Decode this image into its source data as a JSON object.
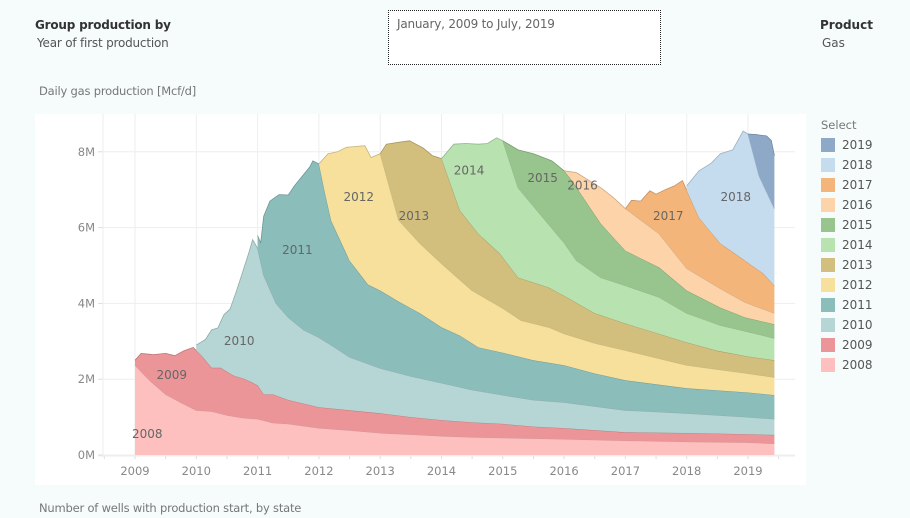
{
  "filters": {
    "group_by_title": "Group production by",
    "group_by_value": "Year of first production",
    "date_range": "January, 2009 to July, 2019",
    "product_title": "Product",
    "product_value": "Gas"
  },
  "chart_title": "Daily gas production [Mcf/d]",
  "bottom_section_title": "Number of wells with production start, by state",
  "legend": {
    "title": "Select",
    "items": [
      {
        "label": "2019",
        "color": "#8ea9c8"
      },
      {
        "label": "2018",
        "color": "#c4dcee"
      },
      {
        "label": "2017",
        "color": "#f4b57a"
      },
      {
        "label": "2016",
        "color": "#fdd3aa"
      },
      {
        "label": "2015",
        "color": "#98c48d"
      },
      {
        "label": "2014",
        "color": "#b8e2b0"
      },
      {
        "label": "2013",
        "color": "#d2bf7d"
      },
      {
        "label": "2012",
        "color": "#f6e09c"
      },
      {
        "label": "2011",
        "color": "#8bbdba"
      },
      {
        "label": "2010",
        "color": "#b5d6d4"
      },
      {
        "label": "2009",
        "color": "#eb9598"
      },
      {
        "label": "2008",
        "color": "#fec0bf"
      }
    ]
  },
  "chart_data": {
    "type": "area",
    "stacked": true,
    "title": "Daily gas production [Mcf/d]",
    "xlabel": "",
    "ylabel": "Daily gas production [Mcf/d]",
    "xlim": [
      2008.5,
      2019.9
    ],
    "ylim": [
      0,
      8800000
    ],
    "x_ticks": [
      "2009",
      "2010",
      "2011",
      "2012",
      "2013",
      "2014",
      "2015",
      "2016",
      "2017",
      "2018",
      "2019"
    ],
    "y_ticks": [
      "0M",
      "2M",
      "4M",
      "6M",
      "8M"
    ],
    "y_tick_values": [
      0,
      2,
      4,
      6,
      8
    ],
    "units": "M (million Mcf/d)",
    "grid": true,
    "legend_position": "right",
    "series_note": "Each series gives the cumulative stacked top (in millions) at [year, value] points; the layer bottom is the previous cohort's top.",
    "series": [
      {
        "name": "2008",
        "label_at": [
          2009.2,
          0.45
        ],
        "start": 2009.0,
        "top": [
          [
            2009.0,
            2.37
          ],
          [
            2009.25,
            1.95
          ],
          [
            2009.5,
            1.6
          ],
          [
            2009.75,
            1.38
          ],
          [
            2010.0,
            1.18
          ],
          [
            2010.25,
            1.15
          ],
          [
            2010.5,
            1.05
          ],
          [
            2010.75,
            0.98
          ],
          [
            2011.0,
            0.95
          ],
          [
            2011.25,
            0.85
          ],
          [
            2011.5,
            0.82
          ],
          [
            2012.0,
            0.71
          ],
          [
            2012.5,
            0.65
          ],
          [
            2013.0,
            0.58
          ],
          [
            2013.5,
            0.54
          ],
          [
            2014.0,
            0.5
          ],
          [
            2014.5,
            0.47
          ],
          [
            2015.0,
            0.45
          ],
          [
            2016.0,
            0.42
          ],
          [
            2017.0,
            0.38
          ],
          [
            2018.0,
            0.35
          ],
          [
            2019.0,
            0.33
          ],
          [
            2019.43,
            0.3
          ]
        ]
      },
      {
        "name": "2009",
        "label_at": [
          2009.6,
          2.0
        ],
        "start": 2009.0,
        "top": [
          [
            2009.0,
            2.5
          ],
          [
            2009.1,
            2.68
          ],
          [
            2009.3,
            2.65
          ],
          [
            2009.5,
            2.68
          ],
          [
            2009.65,
            2.62
          ],
          [
            2009.8,
            2.75
          ],
          [
            2009.95,
            2.84
          ],
          [
            2010.1,
            2.6
          ],
          [
            2010.25,
            2.3
          ],
          [
            2010.4,
            2.3
          ],
          [
            2010.6,
            2.1
          ],
          [
            2010.8,
            2.0
          ],
          [
            2011.0,
            1.84
          ],
          [
            2011.1,
            1.6
          ],
          [
            2011.25,
            1.6
          ],
          [
            2011.5,
            1.45
          ],
          [
            2012.0,
            1.26
          ],
          [
            2012.5,
            1.18
          ],
          [
            2013.0,
            1.1
          ],
          [
            2013.5,
            1.0
          ],
          [
            2014.0,
            0.92
          ],
          [
            2014.5,
            0.86
          ],
          [
            2015.0,
            0.82
          ],
          [
            2015.5,
            0.75
          ],
          [
            2016.0,
            0.71
          ],
          [
            2017.0,
            0.6
          ],
          [
            2018.0,
            0.58
          ],
          [
            2019.0,
            0.55
          ],
          [
            2019.43,
            0.53
          ]
        ]
      },
      {
        "name": "2010",
        "label_at": [
          2010.7,
          2.9
        ],
        "start": 2010.0,
        "top": [
          [
            2010.0,
            2.9
          ],
          [
            2010.15,
            3.05
          ],
          [
            2010.25,
            3.3
          ],
          [
            2010.35,
            3.35
          ],
          [
            2010.45,
            3.7
          ],
          [
            2010.55,
            3.85
          ],
          [
            2010.65,
            4.3
          ],
          [
            2010.75,
            4.8
          ],
          [
            2010.85,
            5.3
          ],
          [
            2010.92,
            5.68
          ],
          [
            2011.0,
            5.45
          ],
          [
            2011.1,
            4.74
          ],
          [
            2011.3,
            4.0
          ],
          [
            2011.5,
            3.63
          ],
          [
            2011.75,
            3.3
          ],
          [
            2012.0,
            3.1
          ],
          [
            2012.25,
            2.85
          ],
          [
            2012.5,
            2.58
          ],
          [
            2013.0,
            2.29
          ],
          [
            2013.5,
            2.08
          ],
          [
            2014.0,
            1.9
          ],
          [
            2014.5,
            1.72
          ],
          [
            2015.0,
            1.58
          ],
          [
            2015.5,
            1.45
          ],
          [
            2016.0,
            1.39
          ],
          [
            2017.0,
            1.18
          ],
          [
            2018.0,
            1.1
          ],
          [
            2019.0,
            1.0
          ],
          [
            2019.43,
            0.95
          ]
        ]
      },
      {
        "name": "2011",
        "label_at": [
          2011.65,
          5.3
        ],
        "start": 2011.0,
        "top": [
          [
            2011.0,
            5.79
          ],
          [
            2011.05,
            5.6
          ],
          [
            2011.1,
            6.3
          ],
          [
            2011.2,
            6.7
          ],
          [
            2011.35,
            6.87
          ],
          [
            2011.5,
            6.86
          ],
          [
            2011.6,
            7.1
          ],
          [
            2011.75,
            7.4
          ],
          [
            2011.85,
            7.6
          ],
          [
            2011.9,
            7.76
          ],
          [
            2012.0,
            7.68
          ],
          [
            2012.1,
            6.9
          ],
          [
            2012.2,
            6.18
          ],
          [
            2012.5,
            5.13
          ],
          [
            2012.8,
            4.5
          ],
          [
            2013.0,
            4.34
          ],
          [
            2013.3,
            4.05
          ],
          [
            2013.65,
            3.74
          ],
          [
            2014.0,
            3.37
          ],
          [
            2014.3,
            3.15
          ],
          [
            2014.6,
            2.84
          ],
          [
            2015.0,
            2.7
          ],
          [
            2015.5,
            2.5
          ],
          [
            2016.0,
            2.37
          ],
          [
            2016.5,
            2.15
          ],
          [
            2017.0,
            1.97
          ],
          [
            2018.0,
            1.76
          ],
          [
            2019.0,
            1.65
          ],
          [
            2019.43,
            1.58
          ]
        ]
      },
      {
        "name": "2012",
        "label_at": [
          2012.65,
          6.7
        ],
        "start": 2012.0,
        "top": [
          [
            2012.0,
            7.68
          ],
          [
            2012.15,
            7.95
          ],
          [
            2012.3,
            8.0
          ],
          [
            2012.45,
            8.12
          ],
          [
            2012.6,
            8.14
          ],
          [
            2012.75,
            8.16
          ],
          [
            2012.85,
            7.85
          ],
          [
            2013.0,
            7.95
          ],
          [
            2013.3,
            6.2
          ],
          [
            2013.65,
            5.58
          ],
          [
            2014.0,
            5.05
          ],
          [
            2014.5,
            4.34
          ],
          [
            2015.0,
            3.87
          ],
          [
            2015.3,
            3.55
          ],
          [
            2015.75,
            3.37
          ],
          [
            2016.0,
            3.2
          ],
          [
            2016.5,
            2.95
          ],
          [
            2017.0,
            2.76
          ],
          [
            2018.0,
            2.37
          ],
          [
            2019.0,
            2.15
          ],
          [
            2019.43,
            2.05
          ]
        ]
      },
      {
        "name": "2013",
        "label_at": [
          2013.55,
          6.2
        ],
        "start": 2013.0,
        "top": [
          [
            2013.0,
            7.95
          ],
          [
            2013.1,
            8.2
          ],
          [
            2013.3,
            8.25
          ],
          [
            2013.48,
            8.29
          ],
          [
            2013.7,
            8.1
          ],
          [
            2013.85,
            7.9
          ],
          [
            2014.0,
            7.82
          ],
          [
            2014.3,
            6.45
          ],
          [
            2014.6,
            5.84
          ],
          [
            2014.95,
            5.32
          ],
          [
            2015.25,
            4.68
          ],
          [
            2015.75,
            4.42
          ],
          [
            2016.0,
            4.2
          ],
          [
            2016.5,
            3.74
          ],
          [
            2017.0,
            3.47
          ],
          [
            2018.0,
            2.97
          ],
          [
            2018.5,
            2.75
          ],
          [
            2019.0,
            2.6
          ],
          [
            2019.43,
            2.5
          ]
        ]
      },
      {
        "name": "2014",
        "label_at": [
          2014.45,
          7.4
        ],
        "start": 2014.0,
        "top": [
          [
            2014.0,
            7.82
          ],
          [
            2014.2,
            8.2
          ],
          [
            2014.4,
            8.22
          ],
          [
            2014.6,
            8.2
          ],
          [
            2014.75,
            8.22
          ],
          [
            2014.9,
            8.37
          ],
          [
            2015.0,
            8.29
          ],
          [
            2015.25,
            7.05
          ],
          [
            2015.6,
            6.37
          ],
          [
            2015.9,
            5.79
          ],
          [
            2016.0,
            5.6
          ],
          [
            2016.2,
            5.13
          ],
          [
            2016.6,
            4.68
          ],
          [
            2017.0,
            4.47
          ],
          [
            2017.55,
            4.16
          ],
          [
            2018.0,
            3.74
          ],
          [
            2018.55,
            3.42
          ],
          [
            2019.0,
            3.25
          ],
          [
            2019.43,
            3.08
          ]
        ]
      },
      {
        "name": "2015",
        "label_at": [
          2015.65,
          7.2
        ],
        "start": 2015.0,
        "top": [
          [
            2015.0,
            8.29
          ],
          [
            2015.25,
            8.05
          ],
          [
            2015.5,
            7.95
          ],
          [
            2015.8,
            7.76
          ],
          [
            2016.0,
            7.5
          ],
          [
            2016.1,
            7.3
          ],
          [
            2016.6,
            6.1
          ],
          [
            2017.0,
            5.39
          ],
          [
            2017.55,
            4.95
          ],
          [
            2018.0,
            4.34
          ],
          [
            2018.55,
            3.89
          ],
          [
            2018.95,
            3.63
          ],
          [
            2019.43,
            3.45
          ]
        ]
      },
      {
        "name": "2016",
        "label_at": [
          2016.3,
          7.0
        ],
        "start": 2016.0,
        "top": [
          [
            2016.0,
            7.5
          ],
          [
            2016.2,
            7.45
          ],
          [
            2016.6,
            7.05
          ],
          [
            2016.8,
            6.8
          ],
          [
            2017.0,
            6.5
          ],
          [
            2017.55,
            5.84
          ],
          [
            2018.0,
            4.92
          ],
          [
            2018.55,
            4.39
          ],
          [
            2018.95,
            4.03
          ],
          [
            2019.43,
            3.74
          ]
        ]
      },
      {
        "name": "2017",
        "label_at": [
          2017.7,
          6.2
        ],
        "start": 2017.0,
        "top": [
          [
            2017.0,
            6.5
          ],
          [
            2017.1,
            6.72
          ],
          [
            2017.25,
            6.7
          ],
          [
            2017.4,
            6.97
          ],
          [
            2017.5,
            6.88
          ],
          [
            2017.65,
            7.0
          ],
          [
            2017.8,
            7.1
          ],
          [
            2017.93,
            7.24
          ],
          [
            2018.2,
            6.26
          ],
          [
            2018.55,
            5.58
          ],
          [
            2018.95,
            5.13
          ],
          [
            2019.25,
            4.79
          ],
          [
            2019.43,
            4.47
          ]
        ]
      },
      {
        "name": "2018",
        "label_at": [
          2018.8,
          6.7
        ],
        "start": 2018.0,
        "top": [
          [
            2018.0,
            7.1
          ],
          [
            2018.2,
            7.5
          ],
          [
            2018.4,
            7.7
          ],
          [
            2018.55,
            7.95
          ],
          [
            2018.75,
            8.05
          ],
          [
            2018.92,
            8.55
          ],
          [
            2019.0,
            8.47
          ],
          [
            2019.18,
            7.37
          ],
          [
            2019.43,
            6.5
          ]
        ]
      },
      {
        "name": "2019",
        "label_at": null,
        "start": 2019.0,
        "top": [
          [
            2019.0,
            8.47
          ],
          [
            2019.15,
            8.45
          ],
          [
            2019.3,
            8.42
          ],
          [
            2019.38,
            8.3
          ],
          [
            2019.43,
            7.9
          ]
        ]
      }
    ]
  }
}
